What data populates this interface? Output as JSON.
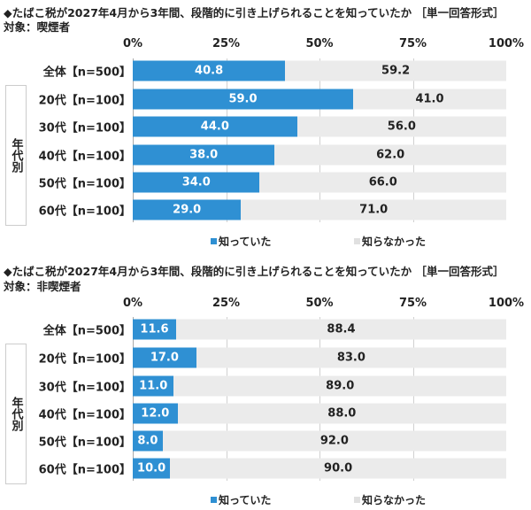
{
  "colors": {
    "known": "#2f90d3",
    "unknown": "#ebebeb"
  },
  "chart_data": [
    {
      "type": "bar",
      "stacked": true,
      "orientation": "horizontal",
      "title": "◆たばこ税が2027年4月から3年間、段階的に引き上げられることを知っていたか ［単一回答形式］",
      "subtitle": "対象：喫煙者",
      "group_label": "年代別",
      "xlim": [
        0,
        100
      ],
      "ticks": [
        "0%",
        "25%",
        "50%",
        "75%",
        "100%"
      ],
      "categories": [
        "全体【n=500】",
        "20代【n=100】",
        "30代【n=100】",
        "40代【n=100】",
        "50代【n=100】",
        "60代【n=100】"
      ],
      "series": [
        {
          "name": "知っていた",
          "values": [
            40.8,
            59.0,
            44.0,
            38.0,
            34.0,
            29.0
          ]
        },
        {
          "name": "知らなかった",
          "values": [
            59.2,
            41.0,
            56.0,
            62.0,
            66.0,
            71.0
          ]
        }
      ],
      "legend": "bottom"
    },
    {
      "type": "bar",
      "stacked": true,
      "orientation": "horizontal",
      "title": "◆たばこ税が2027年4月から3年間、段階的に引き上げられることを知っていたか ［単一回答形式］",
      "subtitle": "対象：非喫煙者",
      "group_label": "年代別",
      "xlim": [
        0,
        100
      ],
      "ticks": [
        "0%",
        "25%",
        "50%",
        "75%",
        "100%"
      ],
      "categories": [
        "全体【n=500】",
        "20代【n=100】",
        "30代【n=100】",
        "40代【n=100】",
        "50代【n=100】",
        "60代【n=100】"
      ],
      "series": [
        {
          "name": "知っていた",
          "values": [
            11.6,
            17.0,
            11.0,
            12.0,
            8.0,
            10.0
          ]
        },
        {
          "name": "知らなかった",
          "values": [
            88.4,
            83.0,
            89.0,
            88.0,
            92.0,
            90.0
          ]
        }
      ],
      "legend": "bottom"
    }
  ]
}
